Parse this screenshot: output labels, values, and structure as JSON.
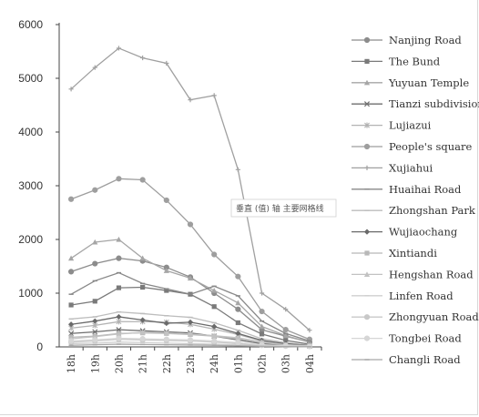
{
  "chart_data": {
    "type": "line",
    "categories": [
      "18h",
      "19h",
      "20h",
      "21h",
      "22h",
      "23h",
      "24h",
      "01h",
      "02h",
      "03h",
      "04h"
    ],
    "ylim": [
      0,
      6000
    ],
    "yticks": [
      0,
      1000,
      2000,
      3000,
      4000,
      5000,
      6000
    ],
    "legend_position": "right",
    "grid": false,
    "annotation": "垂直 (值) 轴 主要网格线",
    "series": [
      {
        "name": "Nanjing Road",
        "color": "#8c8c8c",
        "marker": "circle",
        "values": [
          1400,
          1550,
          1650,
          1600,
          1480,
          1300,
          1000,
          700,
          320,
          200,
          90
        ]
      },
      {
        "name": "The Bund",
        "color": "#7a7a7a",
        "marker": "square",
        "values": [
          780,
          850,
          1100,
          1110,
          1050,
          980,
          750,
          450,
          240,
          120,
          50
        ]
      },
      {
        "name": "Yuyuan Temple",
        "color": "#a6a6a6",
        "marker": "triangle",
        "values": [
          1650,
          1950,
          2000,
          1650,
          1420,
          1280,
          1050,
          820,
          380,
          210,
          90
        ]
      },
      {
        "name": "Tianzi subdivision",
        "color": "#6e6e6e",
        "marker": "x",
        "values": [
          250,
          280,
          320,
          300,
          280,
          260,
          200,
          130,
          60,
          30,
          15
        ]
      },
      {
        "name": "Lujiazui",
        "color": "#b3b3b3",
        "marker": "star",
        "values": [
          350,
          400,
          470,
          470,
          460,
          420,
          330,
          230,
          110,
          50,
          20
        ]
      },
      {
        "name": "People's square",
        "color": "#9e9e9e",
        "marker": "circle",
        "values": [
          2750,
          2920,
          3130,
          3110,
          2730,
          2280,
          1720,
          1310,
          660,
          320,
          140
        ]
      },
      {
        "name": "Xujiahui",
        "color": "#a0a0a0",
        "marker": "plus",
        "values": [
          4800,
          5200,
          5560,
          5380,
          5280,
          4600,
          4680,
          3300,
          1000,
          700,
          310
        ]
      },
      {
        "name": "Huaihai Road",
        "color": "#888888",
        "marker": "dash",
        "values": [
          980,
          1230,
          1380,
          1180,
          1080,
          980,
          1130,
          950,
          480,
          250,
          110
        ]
      },
      {
        "name": "Zhongshan Park",
        "color": "#bdbdbd",
        "marker": "dash",
        "values": [
          520,
          560,
          650,
          620,
          580,
          550,
          450,
          310,
          150,
          80,
          30
        ]
      },
      {
        "name": "Wujiaochang",
        "color": "#6a6a6a",
        "marker": "diamond",
        "values": [
          420,
          480,
          560,
          500,
          440,
          460,
          380,
          250,
          120,
          60,
          25
        ]
      },
      {
        "name": "Xintiandi",
        "color": "#b8b8b8",
        "marker": "square",
        "values": [
          180,
          200,
          250,
          260,
          250,
          230,
          200,
          150,
          80,
          40,
          15
        ]
      },
      {
        "name": "Hengshan Road",
        "color": "#c2c2c2",
        "marker": "triangle",
        "values": [
          150,
          190,
          240,
          270,
          260,
          240,
          210,
          170,
          90,
          40,
          20
        ]
      },
      {
        "name": "Linfen Road",
        "color": "#cfcfcf",
        "marker": "dash",
        "values": [
          60,
          70,
          90,
          80,
          70,
          60,
          50,
          40,
          20,
          10,
          5
        ]
      },
      {
        "name": "Zhongyuan Road",
        "color": "#c8c8c8",
        "marker": "circle",
        "values": [
          90,
          110,
          140,
          130,
          120,
          110,
          90,
          60,
          30,
          15,
          10
        ]
      },
      {
        "name": "Tongbei Road",
        "color": "#d6d6d6",
        "marker": "circle",
        "values": [
          110,
          130,
          160,
          150,
          140,
          130,
          110,
          80,
          40,
          20,
          10
        ]
      },
      {
        "name": "Changli Road",
        "color": "#a8a8a8",
        "marker": "dash",
        "values": [
          30,
          40,
          50,
          45,
          40,
          35,
          30,
          20,
          10,
          5,
          3
        ]
      }
    ]
  }
}
